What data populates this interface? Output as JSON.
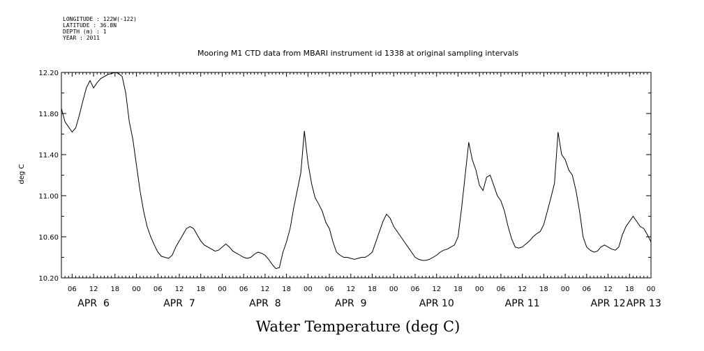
{
  "header": {
    "meta_lines": [
      "LONGITUDE : 122W(-122)",
      "LATITUDE : 36.8N",
      "DEPTH (m) : 1",
      "YEAR : 2011"
    ]
  },
  "chart_data": {
    "type": "line",
    "title": "Mooring M1 CTD data from MBARI instrument id 1338 at original sampling intervals",
    "xlabel": "Water Temperature (deg C)",
    "ylabel": "deg C",
    "ylim": [
      10.2,
      12.2
    ],
    "yticks": [
      "10.20",
      "10.60",
      "11.00",
      "11.40",
      "11.80",
      "12.20"
    ],
    "x_hour_labels": [
      "06",
      "12",
      "18",
      "00",
      "06",
      "12",
      "18",
      "00",
      "06",
      "12",
      "18",
      "00",
      "06",
      "12",
      "18",
      "00",
      "06",
      "12",
      "18",
      "00",
      "06",
      "12",
      "18",
      "00",
      "06",
      "12",
      "18",
      "00"
    ],
    "x_day_labels": [
      "APR  6",
      "APR  7",
      "APR  8",
      "APR  9",
      "APR 10",
      "APR 11",
      "APR 12",
      "APR 13"
    ],
    "xlim_hours": [
      3,
      168
    ],
    "grid": false,
    "series": [
      {
        "points": [
          [
            3,
            11.85
          ],
          [
            4,
            11.72
          ],
          [
            5,
            11.67
          ],
          [
            6,
            11.62
          ],
          [
            7,
            11.66
          ],
          [
            8,
            11.78
          ],
          [
            9,
            11.92
          ],
          [
            10,
            12.05
          ],
          [
            11,
            12.12
          ],
          [
            12,
            12.05
          ],
          [
            13,
            12.1
          ],
          [
            14,
            12.14
          ],
          [
            15,
            12.16
          ],
          [
            16,
            12.18
          ],
          [
            17,
            12.19
          ],
          [
            18,
            12.2
          ],
          [
            19,
            12.19
          ],
          [
            20,
            12.16
          ],
          [
            21,
            12.0
          ],
          [
            22,
            11.72
          ],
          [
            23,
            11.55
          ],
          [
            24,
            11.3
          ],
          [
            25,
            11.05
          ],
          [
            26,
            10.85
          ],
          [
            27,
            10.7
          ],
          [
            28,
            10.6
          ],
          [
            29,
            10.52
          ],
          [
            30,
            10.45
          ],
          [
            31,
            10.41
          ],
          [
            32,
            10.4
          ],
          [
            33,
            10.39
          ],
          [
            34,
            10.42
          ],
          [
            35,
            10.5
          ],
          [
            36,
            10.56
          ],
          [
            37,
            10.62
          ],
          [
            38,
            10.68
          ],
          [
            39,
            10.7
          ],
          [
            40,
            10.68
          ],
          [
            41,
            10.62
          ],
          [
            42,
            10.56
          ],
          [
            43,
            10.52
          ],
          [
            44,
            10.5
          ],
          [
            45,
            10.48
          ],
          [
            46,
            10.46
          ],
          [
            47,
            10.47
          ],
          [
            48,
            10.5
          ],
          [
            49,
            10.53
          ],
          [
            50,
            10.5
          ],
          [
            51,
            10.46
          ],
          [
            52,
            10.44
          ],
          [
            53,
            10.42
          ],
          [
            54,
            10.4
          ],
          [
            55,
            10.39
          ],
          [
            56,
            10.4
          ],
          [
            57,
            10.43
          ],
          [
            58,
            10.45
          ],
          [
            59,
            10.44
          ],
          [
            60,
            10.42
          ],
          [
            61,
            10.38
          ],
          [
            62,
            10.33
          ],
          [
            63,
            10.29
          ],
          [
            64,
            10.3
          ],
          [
            65,
            10.45
          ],
          [
            66,
            10.55
          ],
          [
            67,
            10.68
          ],
          [
            68,
            10.88
          ],
          [
            69,
            11.05
          ],
          [
            70,
            11.22
          ],
          [
            71,
            11.63
          ],
          [
            72,
            11.32
          ],
          [
            73,
            11.12
          ],
          [
            74,
            10.98
          ],
          [
            75,
            10.92
          ],
          [
            76,
            10.85
          ],
          [
            77,
            10.74
          ],
          [
            78,
            10.68
          ],
          [
            79,
            10.55
          ],
          [
            80,
            10.45
          ],
          [
            81,
            10.42
          ],
          [
            82,
            10.4
          ],
          [
            83,
            10.4
          ],
          [
            84,
            10.39
          ],
          [
            85,
            10.38
          ],
          [
            86,
            10.39
          ],
          [
            87,
            10.4
          ],
          [
            88,
            10.4
          ],
          [
            89,
            10.42
          ],
          [
            90,
            10.45
          ],
          [
            91,
            10.55
          ],
          [
            92,
            10.65
          ],
          [
            93,
            10.75
          ],
          [
            94,
            10.82
          ],
          [
            95,
            10.78
          ],
          [
            96,
            10.7
          ],
          [
            97,
            10.65
          ],
          [
            98,
            10.6
          ],
          [
            99,
            10.55
          ],
          [
            100,
            10.5
          ],
          [
            101,
            10.45
          ],
          [
            102,
            10.4
          ],
          [
            103,
            10.38
          ],
          [
            104,
            10.37
          ],
          [
            105,
            10.37
          ],
          [
            106,
            10.38
          ],
          [
            107,
            10.4
          ],
          [
            108,
            10.42
          ],
          [
            109,
            10.45
          ],
          [
            110,
            10.47
          ],
          [
            111,
            10.48
          ],
          [
            112,
            10.5
          ],
          [
            113,
            10.52
          ],
          [
            114,
            10.6
          ],
          [
            115,
            10.88
          ],
          [
            116,
            11.2
          ],
          [
            117,
            11.52
          ],
          [
            118,
            11.35
          ],
          [
            119,
            11.25
          ],
          [
            120,
            11.1
          ],
          [
            121,
            11.05
          ],
          [
            122,
            11.18
          ],
          [
            123,
            11.2
          ],
          [
            124,
            11.1
          ],
          [
            125,
            11.0
          ],
          [
            126,
            10.95
          ],
          [
            127,
            10.85
          ],
          [
            128,
            10.7
          ],
          [
            129,
            10.58
          ],
          [
            130,
            10.5
          ],
          [
            131,
            10.49
          ],
          [
            132,
            10.5
          ],
          [
            133,
            10.53
          ],
          [
            134,
            10.56
          ],
          [
            135,
            10.6
          ],
          [
            136,
            10.63
          ],
          [
            137,
            10.65
          ],
          [
            138,
            10.72
          ],
          [
            139,
            10.85
          ],
          [
            140,
            10.98
          ],
          [
            141,
            11.12
          ],
          [
            142,
            11.62
          ],
          [
            143,
            11.4
          ],
          [
            144,
            11.35
          ],
          [
            145,
            11.25
          ],
          [
            146,
            11.2
          ],
          [
            147,
            11.05
          ],
          [
            148,
            10.85
          ],
          [
            149,
            10.6
          ],
          [
            150,
            10.5
          ],
          [
            151,
            10.47
          ],
          [
            152,
            10.45
          ],
          [
            153,
            10.46
          ],
          [
            154,
            10.5
          ],
          [
            155,
            10.52
          ],
          [
            156,
            10.5
          ],
          [
            157,
            10.48
          ],
          [
            158,
            10.47
          ],
          [
            159,
            10.5
          ],
          [
            160,
            10.62
          ],
          [
            161,
            10.7
          ],
          [
            162,
            10.75
          ],
          [
            163,
            10.8
          ],
          [
            164,
            10.75
          ],
          [
            165,
            10.7
          ],
          [
            166,
            10.68
          ],
          [
            167,
            10.62
          ],
          [
            168,
            10.55
          ]
        ]
      }
    ]
  }
}
